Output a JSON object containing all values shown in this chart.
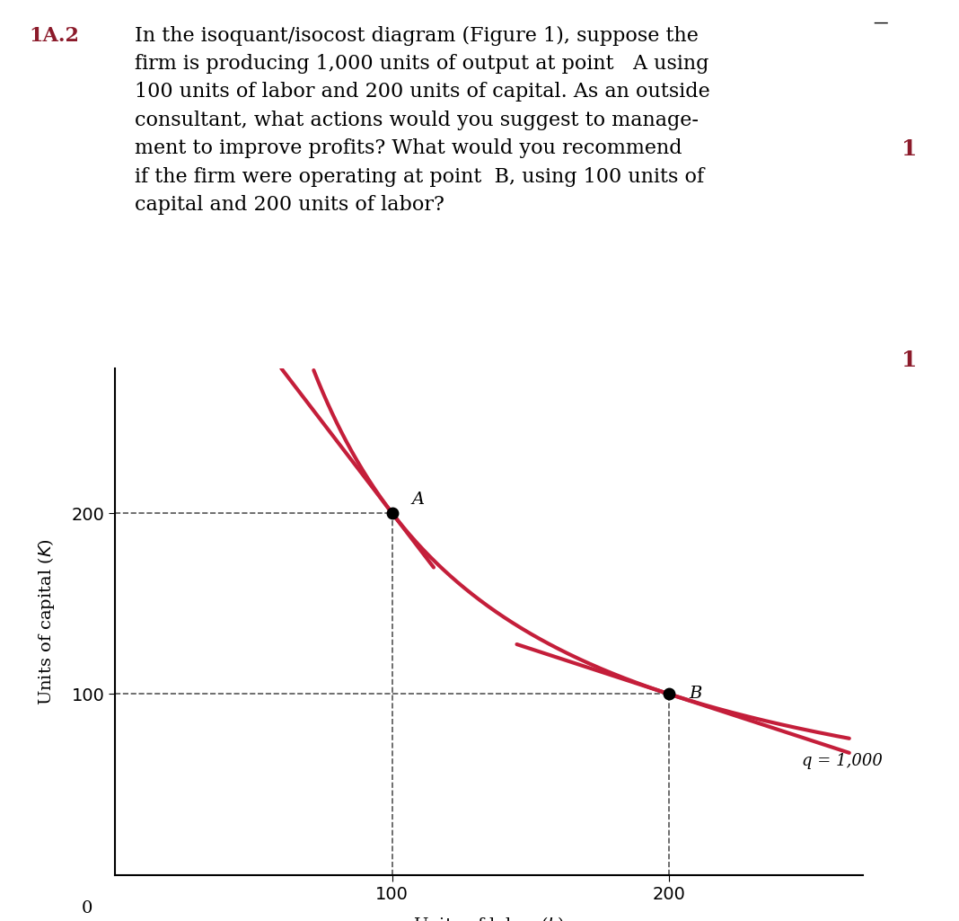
{
  "curve_color": "#C41E3A",
  "line_width": 3.0,
  "point_A": [
    100,
    200
  ],
  "point_B": [
    200,
    100
  ],
  "label_A": "A",
  "label_B": "B",
  "isoquant_label": "q = 1,000",
  "xlabel": "Units of labor ( L )",
  "ylabel": "Units of capital ( K )",
  "xlim": [
    0,
    270
  ],
  "ylim": [
    0,
    280
  ],
  "xticks": [
    100,
    200
  ],
  "yticks": [
    100,
    200
  ],
  "origin_label": "0",
  "background_color": "#ffffff",
  "figsize": [
    10.68,
    10.25
  ],
  "dpi": 100,
  "text_line1_bold": "1A.2",
  "text_line1": " In the isoquant/isocost diagram (Figure 1), suppose the",
  "text_line2": "        firm is producing 1,000 units of output at point  A using",
  "text_line3": "        100 units of labor and 200 units of capital. As an outside",
  "text_line4": "        consultant, what actions would you suggest to manage-",
  "text_line5": "        ment to improve profits? What would you recommend",
  "text_line6": "        if the firm were operating at point  B, using 100 units of",
  "text_line7": "        capital and 200 units of labor?"
}
